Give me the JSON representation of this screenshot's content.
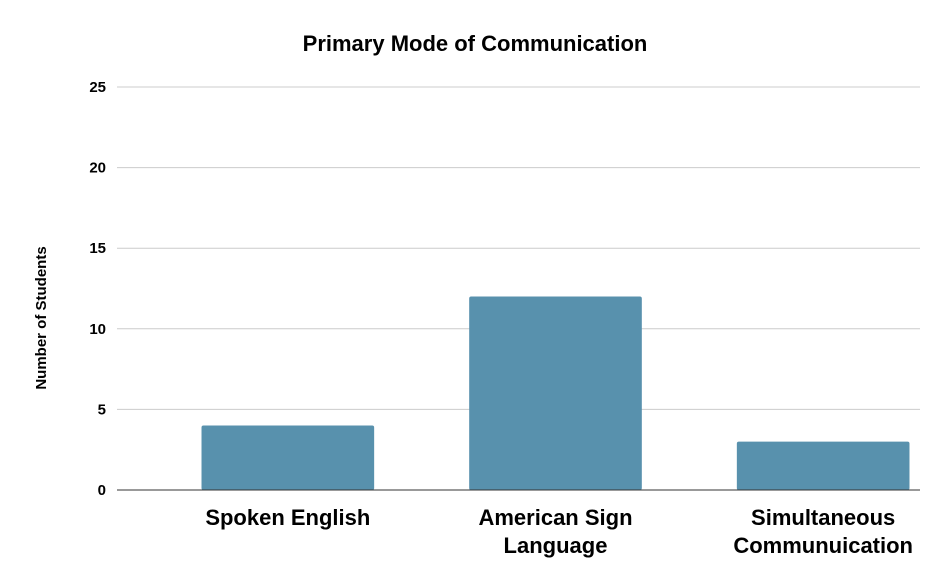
{
  "chart_data": {
    "type": "bar",
    "title": "Primary Mode of Communication",
    "xlabel": "",
    "ylabel": "Number of Students",
    "categories": [
      [
        "Spoken English"
      ],
      [
        "American Sign",
        "Language"
      ],
      [
        "Simultaneous",
        "Communuication"
      ]
    ],
    "values": [
      4,
      12,
      3
    ],
    "ylim": [
      0,
      25
    ],
    "yticks": [
      0,
      5,
      10,
      15,
      20,
      25
    ],
    "grid": true,
    "legend": "none",
    "bar_color": "#5891ad"
  }
}
